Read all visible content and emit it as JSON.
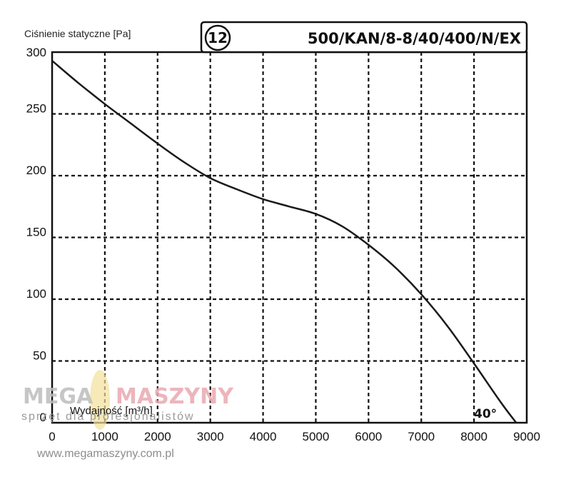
{
  "chart_data": {
    "type": "line",
    "ylabel": "Ciśnienie statyczne [Pa]",
    "xlabel": "Wydajność [m³/h]",
    "curve_number": "12",
    "model": "500/KAN/8-8/40/400/N/EX",
    "blade_angle": "40°",
    "xlim": [
      0,
      9000
    ],
    "ylim": [
      0,
      300
    ],
    "x_ticks": [
      "0",
      "1000",
      "2000",
      "3000",
      "4000",
      "5000",
      "6000",
      "7000",
      "8000",
      "9000"
    ],
    "y_ticks": [
      "0",
      "50",
      "100",
      "150",
      "200",
      "250",
      "300"
    ],
    "grid": true,
    "series": [
      {
        "x": [
          0,
          500,
          1000,
          1500,
          2000,
          2500,
          3000,
          3500,
          4000,
          4500,
          5000,
          5500,
          6000,
          6500,
          7000,
          7500,
          8000,
          8500,
          8800
        ],
        "values": [
          293,
          275,
          258,
          242,
          226,
          211,
          198,
          189,
          181,
          175,
          169,
          159,
          144,
          126,
          104,
          78,
          48,
          17,
          0
        ]
      }
    ]
  },
  "watermark": {
    "brand_left": "MEGA",
    "brand_right": "MASZYNY",
    "tagline": "sprzęt dla profesjonalistów",
    "url": "www.megamaszyny.com.pl"
  }
}
